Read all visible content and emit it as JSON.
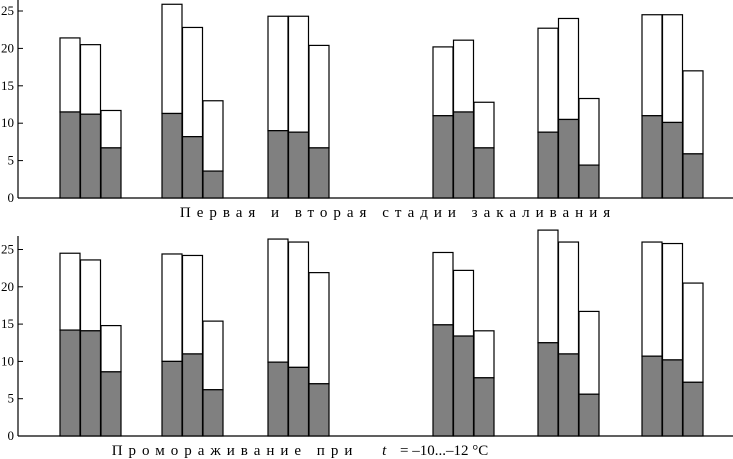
{
  "chart_data": [
    {
      "type": "bar",
      "stacked": true,
      "caption": "Первая и вторая стадии закаливания",
      "ylim": [
        0,
        25
      ],
      "yticks": [
        0,
        5,
        10,
        15,
        20,
        25
      ],
      "groups": [
        {
          "bars": [
            {
              "lower": 11.5,
              "total": 21.4
            },
            {
              "lower": 11.2,
              "total": 20.5
            },
            {
              "lower": 6.7,
              "total": 11.7
            }
          ]
        },
        {
          "bars": [
            {
              "lower": 11.3,
              "total": 25.9
            },
            {
              "lower": 8.2,
              "total": 22.8
            },
            {
              "lower": 3.6,
              "total": 13.0
            }
          ]
        },
        {
          "bars": [
            {
              "lower": 9.0,
              "total": 24.3
            },
            {
              "lower": 8.8,
              "total": 24.3
            },
            {
              "lower": 6.7,
              "total": 20.4
            }
          ]
        },
        {
          "bars": [
            {
              "lower": 11.0,
              "total": 20.2
            },
            {
              "lower": 11.5,
              "total": 21.1
            },
            {
              "lower": 6.7,
              "total": 12.8
            }
          ]
        },
        {
          "bars": [
            {
              "lower": 8.8,
              "total": 22.7
            },
            {
              "lower": 10.5,
              "total": 24.0
            },
            {
              "lower": 4.4,
              "total": 13.3
            }
          ]
        },
        {
          "bars": [
            {
              "lower": 11.0,
              "total": 24.5
            },
            {
              "lower": 10.1,
              "total": 24.5
            },
            {
              "lower": 5.9,
              "total": 17.0
            }
          ]
        }
      ]
    },
    {
      "type": "bar",
      "stacked": true,
      "caption_text": "Промораживание при",
      "caption_var": "t",
      "caption_value": "= –10...–12 °С",
      "ylim": [
        0,
        25
      ],
      "yticks": [
        0,
        5,
        10,
        15,
        20,
        25
      ],
      "groups": [
        {
          "bars": [
            {
              "lower": 14.2,
              "total": 24.5
            },
            {
              "lower": 14.1,
              "total": 23.6
            },
            {
              "lower": 8.6,
              "total": 14.8
            }
          ]
        },
        {
          "bars": [
            {
              "lower": 10.0,
              "total": 24.4
            },
            {
              "lower": 11.0,
              "total": 24.2
            },
            {
              "lower": 6.2,
              "total": 15.4
            }
          ]
        },
        {
          "bars": [
            {
              "lower": 9.9,
              "total": 26.4
            },
            {
              "lower": 9.2,
              "total": 26.0
            },
            {
              "lower": 7.0,
              "total": 21.9
            }
          ]
        },
        {
          "bars": [
            {
              "lower": 14.9,
              "total": 24.6
            },
            {
              "lower": 13.4,
              "total": 22.2
            },
            {
              "lower": 7.8,
              "total": 14.1
            }
          ]
        },
        {
          "bars": [
            {
              "lower": 12.5,
              "total": 27.6
            },
            {
              "lower": 11.0,
              "total": 26.0
            },
            {
              "lower": 5.6,
              "total": 16.7
            }
          ]
        },
        {
          "bars": [
            {
              "lower": 10.7,
              "total": 26.0
            },
            {
              "lower": 10.2,
              "total": 25.8
            },
            {
              "lower": 7.2,
              "total": 20.5
            }
          ]
        }
      ]
    }
  ],
  "colors": {
    "lower": "#808080",
    "upper": "#ffffff",
    "stroke": "#000000"
  }
}
